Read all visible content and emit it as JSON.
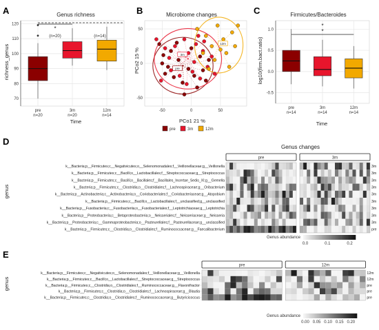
{
  "panels": {
    "A": "A",
    "B": "B",
    "C": "C",
    "D": "D",
    "E": "E"
  },
  "colors": {
    "pre": "#8b0000",
    "m3": "#e8152c",
    "m12": "#f2a900"
  },
  "chart_data": [
    {
      "id": "A",
      "type": "box",
      "title": "Genus richness",
      "xlabel": "Time",
      "ylabel": "richness_genus",
      "ylim": [
        65,
        122
      ],
      "yticks": [
        70,
        80,
        90,
        100,
        110,
        120
      ],
      "categories": [
        "pre",
        "3m",
        "12m"
      ],
      "counts": [
        "n=20",
        "n=20",
        "n=14"
      ],
      "boxes": [
        {
          "min": 70,
          "q1": 82,
          "median": 90,
          "q3": 98,
          "max": 107,
          "outliers": [
            112,
            119
          ],
          "color": "#8b0000"
        },
        {
          "min": 92,
          "q1": 97,
          "median": 102,
          "q3": 108,
          "max": 117,
          "outliers": [],
          "color": "#e8152c"
        },
        {
          "min": 89,
          "q1": 95,
          "median": 103,
          "q3": 109,
          "max": 118,
          "outliers": [],
          "color": "#f2a900"
        }
      ],
      "annotations": [
        {
          "text": "*",
          "from": 0,
          "to": 1
        },
        {
          "text": "(n=20)"
        },
        {
          "text": "(n=14)"
        }
      ]
    },
    {
      "id": "B",
      "type": "scatter",
      "title": "Microbiome changes",
      "xlabel": "PCo1 21 %",
      "ylabel": "PCo2 15 %",
      "xlim": [
        -80,
        95
      ],
      "ylim": [
        -62,
        62
      ],
      "xticks": [
        -50,
        0,
        50
      ],
      "yticks": [
        -50,
        0,
        50
      ],
      "legend": [
        "pre",
        "3m",
        "12m"
      ],
      "centroid_labels": [
        "3m",
        "pre",
        "12m"
      ],
      "series": [
        {
          "name": "pre",
          "color": "#8b0000",
          "points": [
            [
              -55,
              28
            ],
            [
              -48,
              12
            ],
            [
              -40,
              -5
            ],
            [
              -35,
              18
            ],
            [
              -30,
              -20
            ],
            [
              -22,
              5
            ],
            [
              -15,
              -28
            ],
            [
              -10,
              12
            ],
            [
              -5,
              -8
            ],
            [
              0,
              22
            ],
            [
              5,
              -18
            ],
            [
              10,
              -35
            ],
            [
              15,
              10
            ],
            [
              20,
              -10
            ],
            [
              -45,
              -15
            ],
            [
              -25,
              30
            ],
            [
              25,
              -25
            ],
            [
              -50,
              0
            ],
            [
              -12,
              -45
            ],
            [
              30,
              5
            ]
          ]
        },
        {
          "name": "3m",
          "color": "#e8152c",
          "points": [
            [
              -60,
              35
            ],
            [
              -45,
              22
            ],
            [
              -35,
              -10
            ],
            [
              -28,
              25
            ],
            [
              -20,
              -18
            ],
            [
              -12,
              35
            ],
            [
              -5,
              15
            ],
            [
              2,
              -12
            ],
            [
              8,
              28
            ],
            [
              15,
              -22
            ],
            [
              20,
              18
            ],
            [
              28,
              -5
            ],
            [
              35,
              10
            ],
            [
              -38,
              8
            ],
            [
              -8,
              -30
            ],
            [
              12,
              40
            ],
            [
              40,
              -15
            ],
            [
              -52,
              -25
            ],
            [
              22,
              32
            ],
            [
              5,
              2
            ]
          ]
        },
        {
          "name": "12m",
          "color": "#f2a900",
          "points": [
            [
              10,
              50
            ],
            [
              25,
              40
            ],
            [
              35,
              25
            ],
            [
              45,
              55
            ],
            [
              55,
              35
            ],
            [
              60,
              15
            ],
            [
              70,
              45
            ],
            [
              80,
              55
            ],
            [
              40,
              5
            ],
            [
              30,
              -8
            ],
            [
              65,
              -5
            ],
            [
              50,
              20
            ],
            [
              20,
              15
            ],
            [
              75,
              25
            ]
          ]
        }
      ]
    },
    {
      "id": "C",
      "type": "box",
      "title": "Firmicutes/Bacteroides",
      "xlabel": "Time",
      "ylabel": "log10(firm.bact.ratio)",
      "ylim": [
        -0.75,
        1.2
      ],
      "yticks": [
        -0.5,
        0.0,
        0.5,
        1.0
      ],
      "categories": [
        "pre",
        "3m",
        "12m"
      ],
      "counts": [
        "n=14",
        "n=14",
        "n=14"
      ],
      "boxes": [
        {
          "min": -0.3,
          "q1": 0.0,
          "median": 0.25,
          "q3": 0.5,
          "max": 1.0,
          "outliers": [],
          "color": "#8b0000"
        },
        {
          "min": -0.35,
          "q1": -0.1,
          "median": 0.05,
          "q3": 0.35,
          "max": 0.75,
          "outliers": [],
          "color": "#e8152c"
        },
        {
          "min": -0.4,
          "q1": -0.15,
          "median": 0.08,
          "q3": 0.3,
          "max": 0.6,
          "outliers": [],
          "color": "#f2a900"
        }
      ],
      "annotations": [
        {
          "text": "*"
        },
        {
          "text": "*"
        }
      ]
    },
    {
      "id": "D",
      "type": "heatmap",
      "title": "Genus changes",
      "ylabel": "genus",
      "groups": [
        "pre",
        "3m"
      ],
      "rows": [
        "k__Bacteria;p__Firmicutes;c__Negativicutes;o__Selenomonadales;f__Veillonellaceae;g__Veillonella",
        "k__Bacteria;p__Firmicutes;c__Bacilli;o__Lactobacillales;f__Streptococcaceae;g__Streptococcus",
        "k__Bacteria;p__Firmicutes;c__Bacilli;o__Bacillales;f__Bacillales_Incertae_Sedis_XI;g__Gemella",
        "k__Bacteria;p__Firmicutes;c__Clostridia;o__Clostridiales;f__Lachnospiraceae;g__Oribacterium",
        "k__Bacteria;p__Actinobacteria;c__Actinobacteria;o__Coriobacteriales;f__Coriobacteriaceae;g__Atopobium",
        "k__Bacteria;p__Firmicutes;c__Bacilli;o__Lactobacillales;f__unclassified;g__unclassified",
        "k__Bacteria;p__Fusobacteria;c__Fusobacteriia;o__Fusobacteriales;f__Leptotrichiaceae;g__Leptotrichia",
        "k__Bacteria;p__Proteobacteria;c__Betaproteobacteria;o__Neisseriales;f__Neisseriaceae;g__Neisseria",
        "k__Bacteria;p__Proteobacteria;c__Gammaproteobacteria;o__Pasteurellales;f__Pasteurellaceae;g__unclassified",
        "k__Bacteria;p__Firmicutes;c__Clostridia;o__Clostridiales;f__Ruminococcaceae;g__Faecalibacterium"
      ],
      "row_tags": [
        "3m",
        "3m",
        "3m",
        "3m",
        "3m",
        "3m",
        "3m",
        "3m",
        "3m",
        "pre"
      ],
      "columns_per_group": 20,
      "legend_title": "Genus abundance",
      "legend_ticks": [
        "0.0",
        "0.1",
        "0.2"
      ]
    },
    {
      "id": "E",
      "type": "heatmap",
      "ylabel": "genus",
      "groups": [
        "pre",
        "12m"
      ],
      "rows": [
        "k__Bacteria;p__Firmicutes;c__Negativicutes;o__Selenomonadales;f__Veillonellaceae;g__Veillonella",
        "k__Bacteria;p__Firmicutes;c__Bacilli;o__Lactobacillales;f__Streptococcaceae;g__Streptococcus",
        "k__Bacteria;p__Firmicutes;c__Clostridia;o__Clostridiales;f__Ruminococcaceae;g__Flavonifractor",
        "k__Bacteria;p__Firmicutes;c__Clostridia;o__Clostridiales;f__Lachnospiraceae;g__Blautia",
        "k__Bacteria;p__Firmicutes;c__Clostridia;o__Clostridiales;f__Ruminococcaceae;g__Butyricicoccus"
      ],
      "row_tags": [
        "12m",
        "12m",
        "pre",
        "pre",
        "pre"
      ],
      "columns_per_group": 14,
      "legend_title": "Genus abundance",
      "legend_ticks": [
        "0.00",
        "0.05",
        "0.10",
        "0.15",
        "0.20"
      ]
    }
  ]
}
